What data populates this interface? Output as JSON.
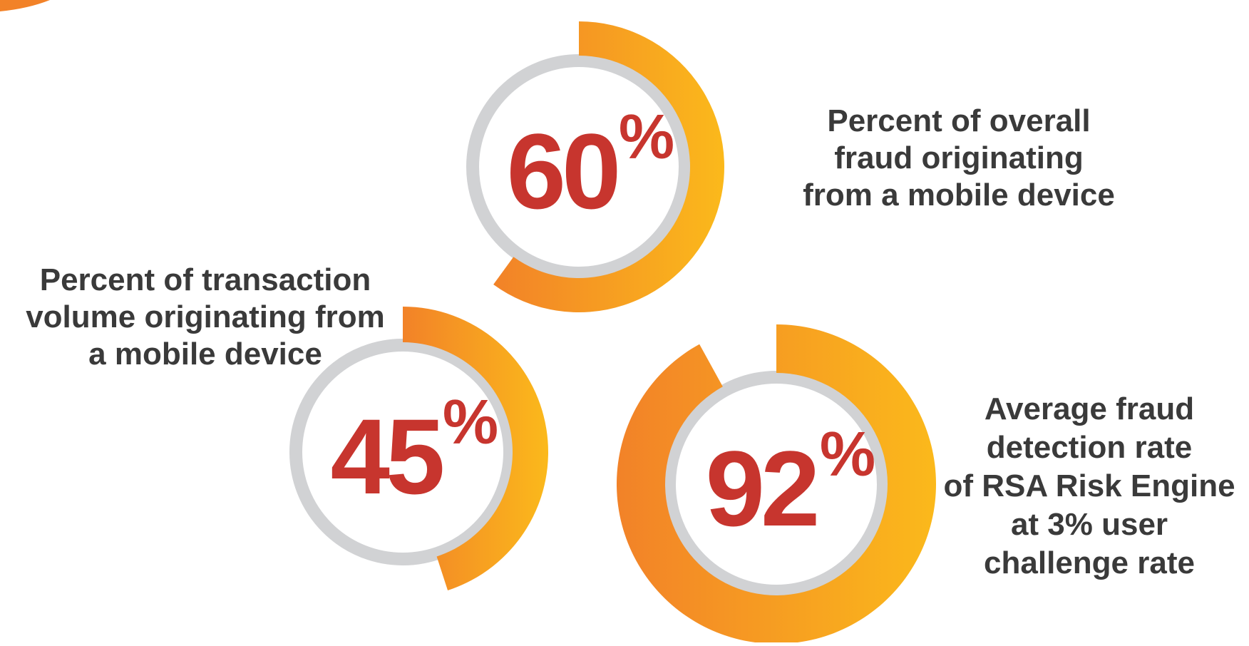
{
  "chart_data": [
    {
      "type": "pie",
      "value": 60,
      "value_label": "60",
      "percent_sign": "%",
      "caption": "Percent of overall\nfraud originating\nfrom a mobile device"
    },
    {
      "type": "pie",
      "value": 45,
      "value_label": "45",
      "percent_sign": "%",
      "caption": "Percent of transaction\nvolume originating from\na mobile device"
    },
    {
      "type": "pie",
      "value": 92,
      "value_label": "92",
      "percent_sign": "%",
      "caption": "Average fraud\ndetection rate\nof RSA Risk Engine\nat 3% user\nchallenge rate"
    }
  ],
  "colors": {
    "track": "#d1d2d4",
    "arc_start": "#f28228",
    "arc_end": "#fbb91b",
    "value_text": "#c7352e",
    "caption_text": "#3a3a3a",
    "corner_accent": "#f28228"
  }
}
